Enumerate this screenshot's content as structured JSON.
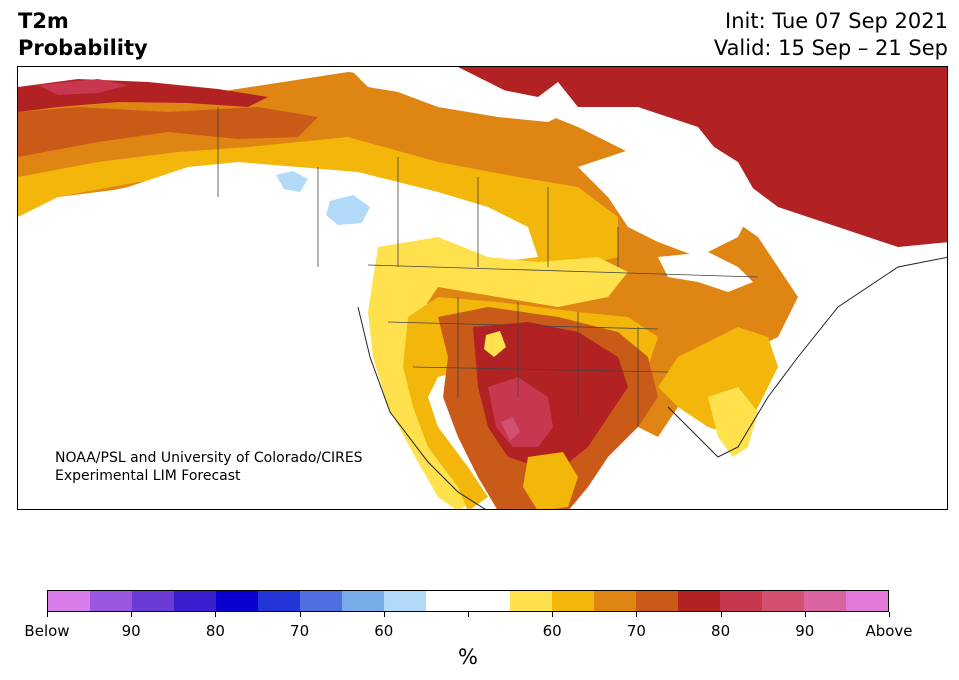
{
  "title": {
    "line1": "T2m",
    "line2": "Probability"
  },
  "info": {
    "init": "Init: Tue 07 Sep 2021",
    "valid": "Valid: 15 Sep – 21 Sep"
  },
  "credit": {
    "line1": "NOAA/PSL and University of Colorado/CIRES",
    "line2": "Experimental LIM Forecast"
  },
  "colorbar": {
    "colors": [
      "#d77ce8",
      "#9b57e0",
      "#6b3bd8",
      "#3a1ed0",
      "#0a00cf",
      "#2236d8",
      "#4f6fe0",
      "#77ace8",
      "#b0daf8",
      "#ffffff",
      "#ffffff",
      "#ffe04d",
      "#f3b60b",
      "#df8514",
      "#c95a18",
      "#b22222",
      "#c73750",
      "#d25070",
      "#da64a0",
      "#e279d8"
    ],
    "tick_labels": [
      "Below",
      "90",
      "80",
      "70",
      "60",
      "",
      "60",
      "70",
      "80",
      "90",
      "Above"
    ],
    "unit": "%"
  },
  "map": {
    "region": "North America",
    "category_colors": {
      "near_normal": "#ffffff",
      "above_55": "#ffe04d",
      "above_60": "#f3b60b",
      "above_65": "#df8514",
      "above_70": "#c95a18",
      "above_75": "#b22222",
      "above_80": "#c73750",
      "above_85": "#d25070",
      "below_60": "#b0daf8"
    }
  }
}
